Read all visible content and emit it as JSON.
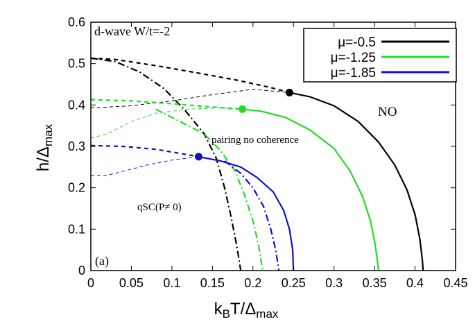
{
  "chart_data": {
    "type": "line",
    "xlim": [
      0,
      0.45
    ],
    "ylim": [
      0,
      0.6
    ],
    "x_ticks": [
      "0",
      "0.05",
      "0.1",
      "0.15",
      "0.2",
      "0.25",
      "0.3",
      "0.35",
      "0.4",
      "0.45"
    ],
    "y_ticks": [
      "0",
      "0.1",
      "0.2",
      "0.3",
      "0.4",
      "0.5",
      "0.6"
    ],
    "x_ticks_values": [
      0,
      0.05,
      0.1,
      0.15,
      0.2,
      0.25,
      0.3,
      0.35,
      0.4,
      0.45
    ],
    "y_ticks_values": [
      0,
      0.1,
      0.2,
      0.3,
      0.4,
      0.5,
      0.6
    ],
    "xlabel": {
      "base": "k",
      "sub1": "B",
      "mid": "T/Δ",
      "sub2": "max"
    },
    "ylabel": {
      "base": "h/Δ",
      "sub": "max"
    },
    "grid": false,
    "legend_position": "top-right",
    "legend": [
      {
        "label": "μ=-0.5",
        "color": "#000000"
      },
      {
        "label": "μ=-1.25",
        "color": "#22dd22"
      },
      {
        "label": "μ=-1.85",
        "color": "#1111cc"
      }
    ],
    "annotations": {
      "title": "d-wave W/t=-2",
      "no_region": "NO",
      "pairing": "pairing no coherence",
      "qsc": "qSC(P≠ 0)",
      "panel": "(a)"
    },
    "series": [
      {
        "name": "μ=-0.5",
        "color": "#000000",
        "critical_point": [
          0.245,
          0.43
        ],
        "solid": [
          [
            0.245,
            0.43
          ],
          [
            0.27,
            0.42
          ],
          [
            0.3,
            0.398
          ],
          [
            0.33,
            0.36
          ],
          [
            0.355,
            0.31
          ],
          [
            0.375,
            0.255
          ],
          [
            0.39,
            0.195
          ],
          [
            0.4,
            0.135
          ],
          [
            0.406,
            0.075
          ],
          [
            0.409,
            0.025
          ],
          [
            0.41,
            0
          ]
        ],
        "dashed_thick": [
          [
            0,
            0.513
          ],
          [
            0.03,
            0.51
          ],
          [
            0.08,
            0.495
          ],
          [
            0.13,
            0.478
          ],
          [
            0.18,
            0.46
          ],
          [
            0.22,
            0.443
          ],
          [
            0.245,
            0.43
          ]
        ],
        "dashed_thin": [
          [
            0,
            0.393
          ],
          [
            0.05,
            0.398
          ],
          [
            0.1,
            0.41
          ],
          [
            0.15,
            0.425
          ],
          [
            0.2,
            0.438
          ],
          [
            0.245,
            0.43
          ]
        ],
        "dashdot": [
          [
            0,
            0.513
          ],
          [
            0.03,
            0.505
          ],
          [
            0.06,
            0.48
          ],
          [
            0.09,
            0.44
          ],
          [
            0.115,
            0.39
          ],
          [
            0.14,
            0.33
          ],
          [
            0.155,
            0.27
          ],
          [
            0.165,
            0.2
          ],
          [
            0.173,
            0.13
          ],
          [
            0.18,
            0.06
          ],
          [
            0.185,
            0
          ]
        ]
      },
      {
        "name": "μ=-1.25",
        "color": "#22dd22",
        "critical_point": [
          0.187,
          0.39
        ],
        "solid": [
          [
            0.187,
            0.39
          ],
          [
            0.21,
            0.385
          ],
          [
            0.24,
            0.37
          ],
          [
            0.27,
            0.34
          ],
          [
            0.3,
            0.295
          ],
          [
            0.32,
            0.24
          ],
          [
            0.335,
            0.18
          ],
          [
            0.345,
            0.12
          ],
          [
            0.351,
            0.06
          ],
          [
            0.355,
            0
          ]
        ],
        "dashed_thick": [
          [
            0,
            0.413
          ],
          [
            0.05,
            0.41
          ],
          [
            0.1,
            0.403
          ],
          [
            0.15,
            0.395
          ],
          [
            0.187,
            0.39
          ]
        ],
        "dashed_thin": [
          [
            0,
            0.32
          ],
          [
            0.02,
            0.33
          ],
          [
            0.05,
            0.36
          ],
          [
            0.08,
            0.38
          ],
          [
            0.12,
            0.39
          ],
          [
            0.16,
            0.393
          ],
          [
            0.187,
            0.39
          ]
        ],
        "dashdot": [
          [
            0.08,
            0.39
          ],
          [
            0.11,
            0.36
          ],
          [
            0.14,
            0.33
          ],
          [
            0.16,
            0.29
          ],
          [
            0.178,
            0.24
          ],
          [
            0.19,
            0.18
          ],
          [
            0.2,
            0.12
          ],
          [
            0.207,
            0.06
          ],
          [
            0.212,
            0
          ]
        ]
      },
      {
        "name": "μ=-1.85",
        "color": "#1111cc",
        "critical_point": [
          0.133,
          0.275
        ],
        "solid": [
          [
            0.133,
            0.275
          ],
          [
            0.16,
            0.265
          ],
          [
            0.185,
            0.25
          ],
          [
            0.205,
            0.225
          ],
          [
            0.225,
            0.19
          ],
          [
            0.238,
            0.145
          ],
          [
            0.245,
            0.1
          ],
          [
            0.249,
            0.05
          ],
          [
            0.25,
            0
          ]
        ],
        "dashed_thick": [
          [
            0,
            0.302
          ],
          [
            0.04,
            0.3
          ],
          [
            0.08,
            0.293
          ],
          [
            0.11,
            0.283
          ],
          [
            0.133,
            0.275
          ]
        ],
        "dashed_thin": [
          [
            0,
            0.23
          ],
          [
            0.02,
            0.23
          ],
          [
            0.04,
            0.24
          ],
          [
            0.07,
            0.255
          ],
          [
            0.1,
            0.267
          ],
          [
            0.133,
            0.275
          ]
        ],
        "dashdot": [
          [
            0.165,
            0.265
          ],
          [
            0.185,
            0.235
          ],
          [
            0.2,
            0.2
          ],
          [
            0.213,
            0.155
          ],
          [
            0.222,
            0.1
          ],
          [
            0.228,
            0.05
          ],
          [
            0.232,
            0
          ]
        ]
      }
    ]
  }
}
